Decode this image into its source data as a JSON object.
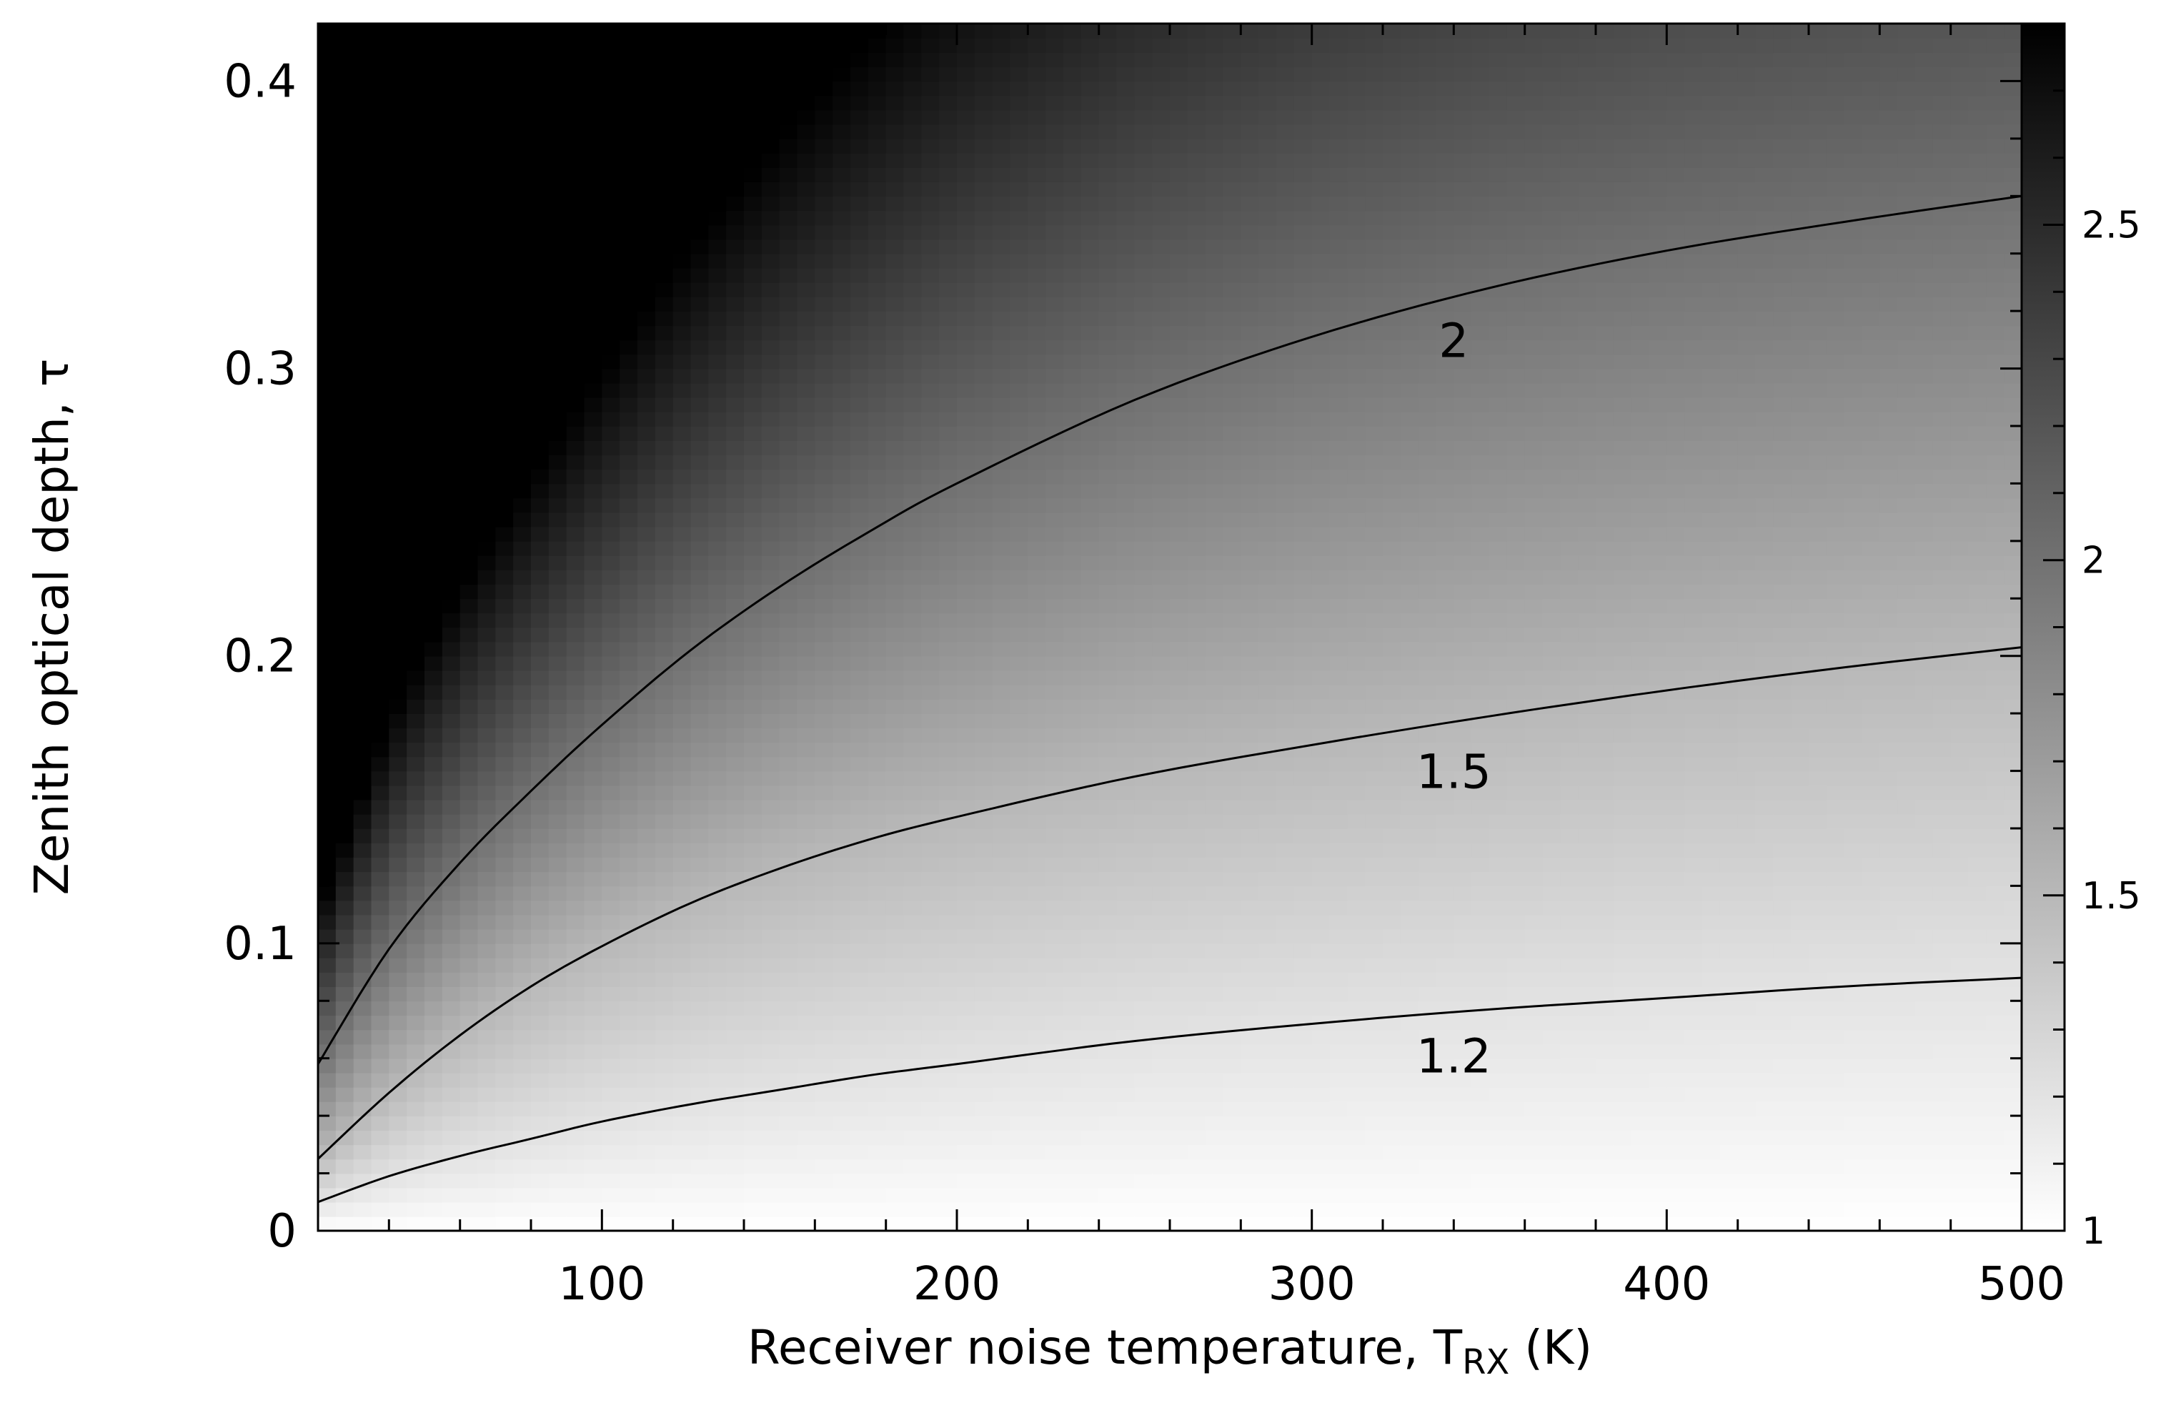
{
  "chart_data": {
    "type": "heatmap",
    "x": {
      "label": "Receiver noise temperature, T",
      "label_sub": "RX",
      "label_unit": " (K)",
      "range": [
        20,
        500
      ],
      "ticks": [
        100,
        200,
        300,
        400,
        500
      ],
      "tick_labels": [
        "100",
        "200",
        "300",
        "400",
        "500"
      ],
      "minor_step": 20
    },
    "y": {
      "label": "Zenith optical depth, τ",
      "range": [
        0,
        0.42
      ],
      "ticks": [
        0,
        0.1,
        0.2,
        0.3,
        0.4
      ],
      "tick_labels": [
        "0",
        "0.1",
        "0.2",
        "0.3",
        "0.4"
      ],
      "minor_step": 0.02
    },
    "colorbar": {
      "range": [
        1,
        2.8
      ],
      "ticks": [
        1,
        1.5,
        2,
        2.5
      ],
      "tick_labels": [
        "1",
        "1.5",
        "2",
        "2.5"
      ],
      "minor_step": 0.1,
      "colormap": "white-to-black",
      "low_color": "#ffffff",
      "high_color": "#000000"
    },
    "contours": [
      {
        "label": "2",
        "level": 2,
        "label_at": [
          340,
          0.31
        ],
        "points": [
          [
            20,
            0.058
          ],
          [
            40,
            0.098
          ],
          [
            60,
            0.128
          ],
          [
            80,
            0.153
          ],
          [
            100,
            0.176
          ],
          [
            125,
            0.202
          ],
          [
            150,
            0.224
          ],
          [
            175,
            0.243
          ],
          [
            200,
            0.26
          ],
          [
            250,
            0.289
          ],
          [
            300,
            0.311
          ],
          [
            350,
            0.328
          ],
          [
            400,
            0.341
          ],
          [
            450,
            0.351
          ],
          [
            500,
            0.36
          ]
        ]
      },
      {
        "label": "1.5",
        "level": 1.5,
        "label_at": [
          340,
          0.16
        ],
        "points": [
          [
            20,
            0.025
          ],
          [
            40,
            0.048
          ],
          [
            60,
            0.068
          ],
          [
            80,
            0.085
          ],
          [
            100,
            0.099
          ],
          [
            125,
            0.114
          ],
          [
            150,
            0.126
          ],
          [
            175,
            0.136
          ],
          [
            200,
            0.144
          ],
          [
            250,
            0.158
          ],
          [
            300,
            0.169
          ],
          [
            350,
            0.179
          ],
          [
            400,
            0.188
          ],
          [
            450,
            0.196
          ],
          [
            500,
            0.203
          ]
        ]
      },
      {
        "label": "1.2",
        "level": 1.2,
        "label_at": [
          340,
          0.061
        ],
        "points": [
          [
            20,
            0.01
          ],
          [
            40,
            0.019
          ],
          [
            60,
            0.026
          ],
          [
            80,
            0.032
          ],
          [
            100,
            0.038
          ],
          [
            125,
            0.044
          ],
          [
            150,
            0.049
          ],
          [
            175,
            0.054
          ],
          [
            200,
            0.058
          ],
          [
            250,
            0.066
          ],
          [
            300,
            0.072
          ],
          [
            350,
            0.077
          ],
          [
            400,
            0.081
          ],
          [
            450,
            0.085
          ],
          [
            500,
            0.088
          ]
        ]
      }
    ]
  }
}
